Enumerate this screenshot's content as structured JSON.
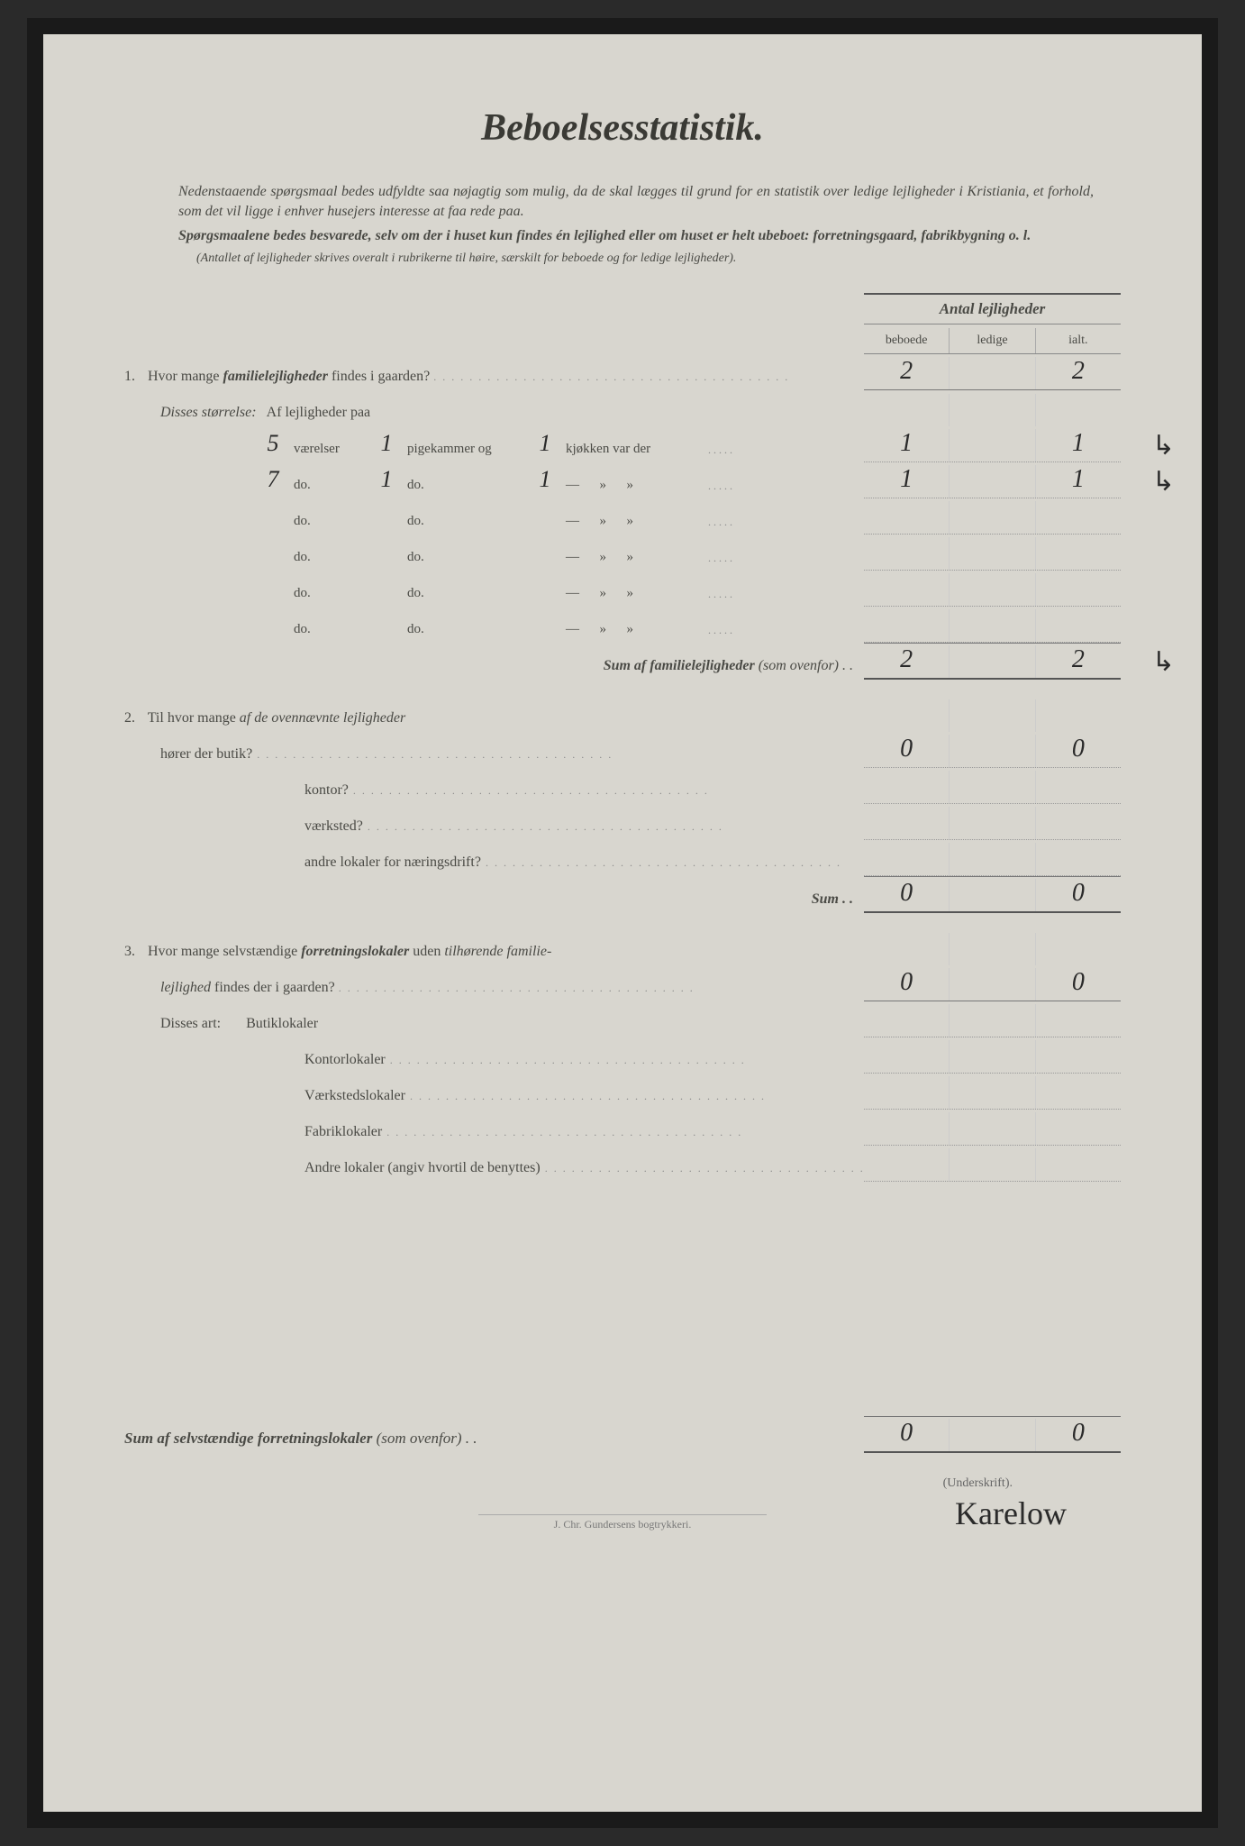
{
  "title": "Beboelsesstatistik.",
  "intro1": "Nedenstaaende spørgsmaal bedes udfyldte saa nøjagtig som mulig, da de skal lægges til grund for en statistik over ledige lejligheder i Kristiania, et forhold, som det vil ligge i enhver husejers interesse at faa rede paa.",
  "intro2": "Spørgsmaalene bedes besvarede, selv om der i huset kun findes én lejlighed eller om huset er helt ubeboet: forretningsgaard, fabrikbygning o. l.",
  "note": "(Antallet af lejligheder skrives overalt i rubrikerne til høire, særskilt for beboede og for ledige lejligheder).",
  "header": {
    "main": "Antal lejligheder",
    "col1": "beboede",
    "col2": "ledige",
    "col3": "ialt."
  },
  "q1": {
    "num": "1.",
    "text_a": "Hvor mange ",
    "text_b": "familielejligheder",
    "text_c": " findes i gaarden?",
    "beboede": "2",
    "ledige": "",
    "ialt": "2",
    "disses": "Disses størrelse:",
    "af": "Af lejligheder paa",
    "rows": [
      {
        "v": "5",
        "vlbl": "værelser",
        "p": "1",
        "plbl": "pigekammer og",
        "k": "1",
        "klbl": "kjøkken var der",
        "b": "1",
        "l": "",
        "i": "1",
        "margin": "↳"
      },
      {
        "v": "7",
        "vlbl": "do.",
        "p": "1",
        "plbl": "do.",
        "k": "1",
        "klbl": "—      »      »",
        "b": "1",
        "l": "",
        "i": "1",
        "margin": "↳"
      },
      {
        "v": "",
        "vlbl": "do.",
        "p": "",
        "plbl": "do.",
        "k": "",
        "klbl": "—      »      »",
        "b": "",
        "l": "",
        "i": "",
        "margin": ""
      },
      {
        "v": "",
        "vlbl": "do.",
        "p": "",
        "plbl": "do.",
        "k": "",
        "klbl": "—      »      »",
        "b": "",
        "l": "",
        "i": "",
        "margin": ""
      },
      {
        "v": "",
        "vlbl": "do.",
        "p": "",
        "plbl": "do.",
        "k": "",
        "klbl": "—      »      »",
        "b": "",
        "l": "",
        "i": "",
        "margin": ""
      },
      {
        "v": "",
        "vlbl": "do.",
        "p": "",
        "plbl": "do.",
        "k": "",
        "klbl": "—      »      »",
        "b": "",
        "l": "",
        "i": "",
        "margin": ""
      }
    ],
    "sum_a": "Sum af ",
    "sum_b": "familielejligheder",
    "sum_c": " (som ovenfor) . .",
    "sum_beboede": "2",
    "sum_ledige": "",
    "sum_ialt": "2",
    "sum_margin": "↳"
  },
  "q2": {
    "num": "2.",
    "text_a": "Til hvor mange ",
    "text_b": "af de ovennævnte lejligheder",
    "rows": [
      {
        "label": "hører der butik?",
        "b": "0",
        "l": "",
        "i": "0"
      },
      {
        "label": "kontor?",
        "b": "",
        "l": "",
        "i": ""
      },
      {
        "label": "værksted?",
        "b": "",
        "l": "",
        "i": ""
      },
      {
        "label": "andre lokaler for næringsdrift?",
        "b": "",
        "l": "",
        "i": ""
      }
    ],
    "sum_label": "Sum . .",
    "sum_b": "0",
    "sum_l": "",
    "sum_i": "0"
  },
  "q3": {
    "num": "3.",
    "text_a": "Hvor mange selvstændige ",
    "text_b": "forretningslokaler",
    "text_c": " uden ",
    "text_d": "tilhørende familie-",
    "line2_a": "lejlighed",
    "line2_b": " findes der i gaarden?",
    "b": "0",
    "l": "",
    "i": "0",
    "disses": "Disses art:",
    "rows": [
      {
        "label": "Butiklokaler"
      },
      {
        "label": "Kontorlokaler"
      },
      {
        "label": "Værkstedslokaler"
      },
      {
        "label": "Fabriklokaler"
      },
      {
        "label": "Andre lokaler (angiv hvortil de benyttes)"
      }
    ]
  },
  "footer_sum": {
    "text_a": "Sum af selvstændige ",
    "text_b": "forretningslokaler",
    "text_c": " (som ovenfor) . .",
    "b": "0",
    "l": "",
    "i": "0"
  },
  "underskrift": "(Underskrift).",
  "signature": "Karelow",
  "printer": "J. Chr. Gundersens bogtrykkeri."
}
